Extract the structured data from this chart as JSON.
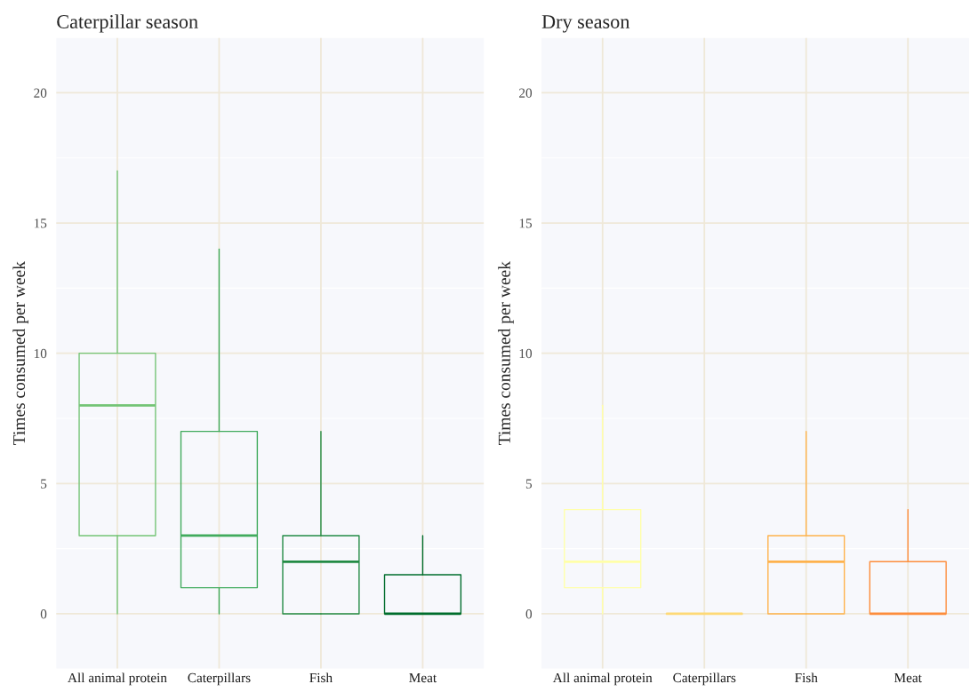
{
  "chart_data": [
    {
      "type": "box",
      "title": "Caterpillar season",
      "ylabel": "Times consumed per week",
      "categories": [
        "All animal protein",
        "Caterpillars",
        "Fish",
        "Meat"
      ],
      "boxes": [
        {
          "low": 0,
          "q1": 3,
          "median": 8,
          "q3": 10,
          "high": 17
        },
        {
          "low": 0,
          "q1": 1,
          "median": 3,
          "q3": 7,
          "high": 14
        },
        {
          "low": 0,
          "q1": 0,
          "median": 2,
          "q3": 3,
          "high": 7
        },
        {
          "low": 0,
          "q1": 0,
          "median": 0,
          "q3": 1.5,
          "high": 3
        }
      ],
      "colors": [
        "#74c476",
        "#41ab5d",
        "#238b45",
        "#006d2c"
      ],
      "ylim": [
        -2.1,
        22.1
      ],
      "yticks": [
        0,
        5,
        10,
        15,
        20
      ],
      "grid": true
    },
    {
      "type": "box",
      "title": "Dry season",
      "ylabel": "Times consumed per week",
      "categories": [
        "All animal protein",
        "Caterpillars",
        "Fish",
        "Meat"
      ],
      "boxes": [
        {
          "low": 0,
          "q1": 1,
          "median": 2,
          "q3": 4,
          "high": 8
        },
        {
          "low": 0,
          "q1": 0,
          "median": 0,
          "q3": 0,
          "high": 0
        },
        {
          "low": 0,
          "q1": 0,
          "median": 2,
          "q3": 3,
          "high": 7
        },
        {
          "low": 0,
          "q1": 0,
          "median": 0,
          "q3": 2,
          "high": 4
        }
      ],
      "colors": [
        "#ffffa8",
        "#fed976",
        "#feb24c",
        "#fd8d3c"
      ],
      "ylim": [
        -2.1,
        22.1
      ],
      "yticks": [
        0,
        5,
        10,
        15,
        20
      ],
      "grid": true
    }
  ]
}
